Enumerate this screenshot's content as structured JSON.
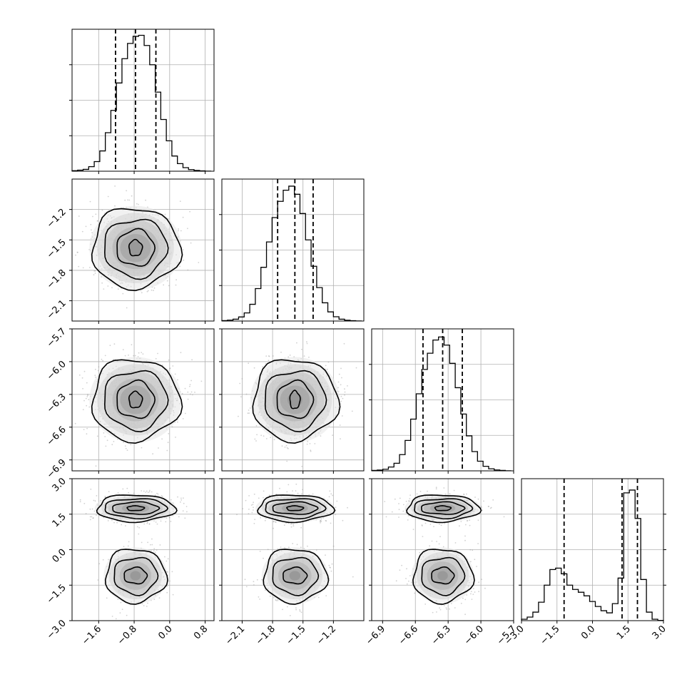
{
  "figure": {
    "type": "corner-plot",
    "grid_color": "#b0b0b0",
    "scatter_color": "#9a9a9a",
    "contour_color": "#000000",
    "hist_color": "#000000",
    "quantile_line_style": "dashed"
  },
  "chart_data": [
    {
      "type": "bar",
      "panel": "hist-param-1",
      "xlim": [
        -2.2,
        1.0
      ],
      "xticks": [
        "-1.6",
        "-0.8",
        "0.0",
        "0.8"
      ],
      "x_tick_values": [
        -1.6,
        -0.8,
        0.0,
        0.8
      ],
      "bin_edges": [
        -2.2,
        -2.075,
        -1.95,
        -1.825,
        -1.7,
        -1.575,
        -1.45,
        -1.325,
        -1.2,
        -1.075,
        -0.95,
        -0.825,
        -0.7,
        -0.575,
        -0.45,
        -0.325,
        -0.2,
        -0.075,
        0.05,
        0.175,
        0.3,
        0.425,
        0.55,
        0.675,
        0.8,
        0.925
      ],
      "values": [
        5,
        10,
        18,
        45,
        95,
        200,
        380,
        600,
        870,
        1110,
        1260,
        1330,
        1340,
        1240,
        1050,
        780,
        510,
        300,
        150,
        75,
        35,
        16,
        8,
        3,
        1
      ],
      "quantiles": [
        -1.22,
        -0.77,
        -0.31
      ],
      "ylim": [
        0,
        1400
      ]
    },
    {
      "type": "bar",
      "panel": "hist-param-2",
      "xlim": [
        -2.3,
        -0.9
      ],
      "xticks": [
        "-2.1",
        "-1.8",
        "-1.5",
        "-1.2"
      ],
      "x_tick_values": [
        -2.1,
        -1.8,
        -1.5,
        -1.2
      ],
      "bin_edges": [
        -2.3,
        -2.245,
        -2.19,
        -2.135,
        -2.08,
        -2.025,
        -1.97,
        -1.915,
        -1.86,
        -1.805,
        -1.75,
        -1.695,
        -1.64,
        -1.585,
        -1.53,
        -1.475,
        -1.42,
        -1.365,
        -1.31,
        -1.255,
        -1.2,
        -1.145,
        -1.09,
        -1.035,
        -0.98,
        -0.925
      ],
      "values": [
        4,
        9,
        18,
        40,
        80,
        165,
        320,
        530,
        780,
        1020,
        1180,
        1290,
        1330,
        1250,
        1060,
        800,
        540,
        330,
        180,
        90,
        42,
        18,
        8,
        3,
        1
      ],
      "quantiles": [
        -1.75,
        -1.58,
        -1.4
      ],
      "ylim": [
        0,
        1400
      ]
    },
    {
      "type": "bar",
      "panel": "hist-param-3",
      "xlim": [
        -7.0,
        -5.7
      ],
      "xticks": [
        "-6.9",
        "-6.6",
        "-6.3",
        "-6.0",
        "-5.7"
      ],
      "x_tick_values": [
        -6.9,
        -6.6,
        -6.3,
        -6.0,
        -5.7
      ],
      "bin_edges": [
        -7.0,
        -6.949,
        -6.898,
        -6.847,
        -6.796,
        -6.745,
        -6.694,
        -6.643,
        -6.592,
        -6.541,
        -6.49,
        -6.439,
        -6.388,
        -6.337,
        -6.286,
        -6.235,
        -6.184,
        -6.133,
        -6.082,
        -6.031,
        -5.98,
        -5.929,
        -5.878,
        -5.827,
        -5.776,
        -5.725
      ],
      "values": [
        4,
        8,
        16,
        38,
        75,
        160,
        300,
        510,
        760,
        1000,
        1160,
        1290,
        1320,
        1240,
        1060,
        820,
        560,
        345,
        190,
        95,
        45,
        20,
        9,
        4,
        1
      ],
      "quantiles": [
        -6.53,
        -6.35,
        -6.17
      ],
      "ylim": [
        0,
        1400
      ]
    },
    {
      "type": "bar",
      "panel": "hist-param-4",
      "xlim": [
        -3.0,
        3.0
      ],
      "xticks": [
        "-3.0",
        "-1.5",
        "0.0",
        "1.5",
        "3.0"
      ],
      "x_tick_values": [
        -3.0,
        -1.5,
        0.0,
        1.5,
        3.0
      ],
      "bin_edges": [
        -3.0,
        -2.76,
        -2.52,
        -2.28,
        -2.04,
        -1.8,
        -1.56,
        -1.32,
        -1.08,
        -0.84,
        -0.6,
        -0.36,
        -0.12,
        0.12,
        0.36,
        0.6,
        0.84,
        1.08,
        1.32,
        1.56,
        1.8,
        2.04,
        2.28,
        2.52,
        2.76,
        3.0
      ],
      "values": [
        10,
        25,
        60,
        130,
        250,
        360,
        370,
        330,
        250,
        220,
        200,
        175,
        135,
        100,
        70,
        55,
        120,
        300,
        900,
        920,
        720,
        290,
        60,
        10,
        2
      ],
      "quantiles": [
        -1.2,
        1.25,
        1.9
      ],
      "ylim": [
        0,
        1000
      ]
    },
    {
      "type": "scatter",
      "panel": "joint-param-1-param-2",
      "xlim": [
        -2.2,
        1.0
      ],
      "ylim": [
        -2.3,
        -0.9
      ],
      "yticks": [
        "-2.1",
        "-1.8",
        "-1.5",
        "-1.2"
      ],
      "y_tick_values": [
        -2.1,
        -1.8,
        -1.5,
        -1.2
      ],
      "center": [
        -0.77,
        -1.58
      ],
      "spread": [
        0.45,
        0.18
      ],
      "contour_levels": [
        {
          "level": 0.86,
          "sx": 1.0,
          "sy": 1.0
        },
        {
          "level": 0.68,
          "sx": 0.72,
          "sy": 0.72
        },
        {
          "level": 0.39,
          "sx": 0.43,
          "sy": 0.45
        },
        {
          "level": 0.12,
          "sx": 0.15,
          "sy": 0.2
        }
      ]
    },
    {
      "type": "scatter",
      "panel": "joint-param-1-param-3",
      "xlim": [
        -2.2,
        1.0
      ],
      "ylim": [
        -7.0,
        -5.7
      ],
      "yticks": [
        "-6.9",
        "-6.6",
        "-6.3",
        "-6.0",
        "-5.7"
      ],
      "y_tick_values": [
        -6.9,
        -6.6,
        -6.3,
        -6.0,
        -5.7
      ],
      "center": [
        -0.77,
        -6.35
      ],
      "spread": [
        0.45,
        0.17
      ],
      "contour_levels": [
        {
          "level": 0.86,
          "sx": 1.0,
          "sy": 1.0
        },
        {
          "level": 0.68,
          "sx": 0.72,
          "sy": 0.72
        },
        {
          "level": 0.39,
          "sx": 0.43,
          "sy": 0.45
        },
        {
          "level": 0.12,
          "sx": 0.15,
          "sy": 0.2
        }
      ]
    },
    {
      "type": "scatter",
      "panel": "joint-param-2-param-3",
      "xlim": [
        -2.3,
        -0.9
      ],
      "ylim": [
        -7.0,
        -5.7
      ],
      "center": [
        -1.58,
        -6.35
      ],
      "spread": [
        0.19,
        0.17
      ],
      "contour_levels": [
        {
          "level": 0.86,
          "sx": 1.0,
          "sy": 1.0
        },
        {
          "level": 0.68,
          "sx": 0.72,
          "sy": 0.72
        },
        {
          "level": 0.39,
          "sx": 0.43,
          "sy": 0.45
        },
        {
          "level": 0.12,
          "sx": 0.12,
          "sy": 0.22
        }
      ]
    },
    {
      "type": "scatter",
      "panel": "joint-param-1-param-4",
      "xlim": [
        -2.2,
        1.0
      ],
      "ylim": [
        -3.0,
        3.0
      ],
      "yticks": [
        "-3.0",
        "-1.5",
        "0.0",
        "1.5",
        "3.0"
      ],
      "y_tick_values": [
        -3.0,
        -1.5,
        0.0,
        1.5,
        3.0
      ],
      "modes": [
        {
          "center": [
            -0.77,
            1.75
          ],
          "spread": [
            0.45,
            0.3
          ],
          "weight": 0.6
        },
        {
          "center": [
            -0.77,
            -1.1
          ],
          "spread": [
            0.35,
            0.6
          ],
          "weight": 0.4
        }
      ]
    },
    {
      "type": "scatter",
      "panel": "joint-param-2-param-4",
      "xlim": [
        -2.3,
        -0.9
      ],
      "ylim": [
        -3.0,
        3.0
      ],
      "modes": [
        {
          "center": [
            -1.58,
            1.75
          ],
          "spread": [
            0.19,
            0.3
          ],
          "weight": 0.6
        },
        {
          "center": [
            -1.58,
            -1.1
          ],
          "spread": [
            0.16,
            0.6
          ],
          "weight": 0.4
        }
      ]
    },
    {
      "type": "scatter",
      "panel": "joint-param-3-param-4",
      "xlim": [
        -7.0,
        -5.7
      ],
      "ylim": [
        -3.0,
        3.0
      ],
      "modes": [
        {
          "center": [
            -6.35,
            1.75
          ],
          "spread": [
            0.17,
            0.3
          ],
          "weight": 0.6
        },
        {
          "center": [
            -6.35,
            -1.1
          ],
          "spread": [
            0.14,
            0.6
          ],
          "weight": 0.4
        }
      ]
    }
  ]
}
